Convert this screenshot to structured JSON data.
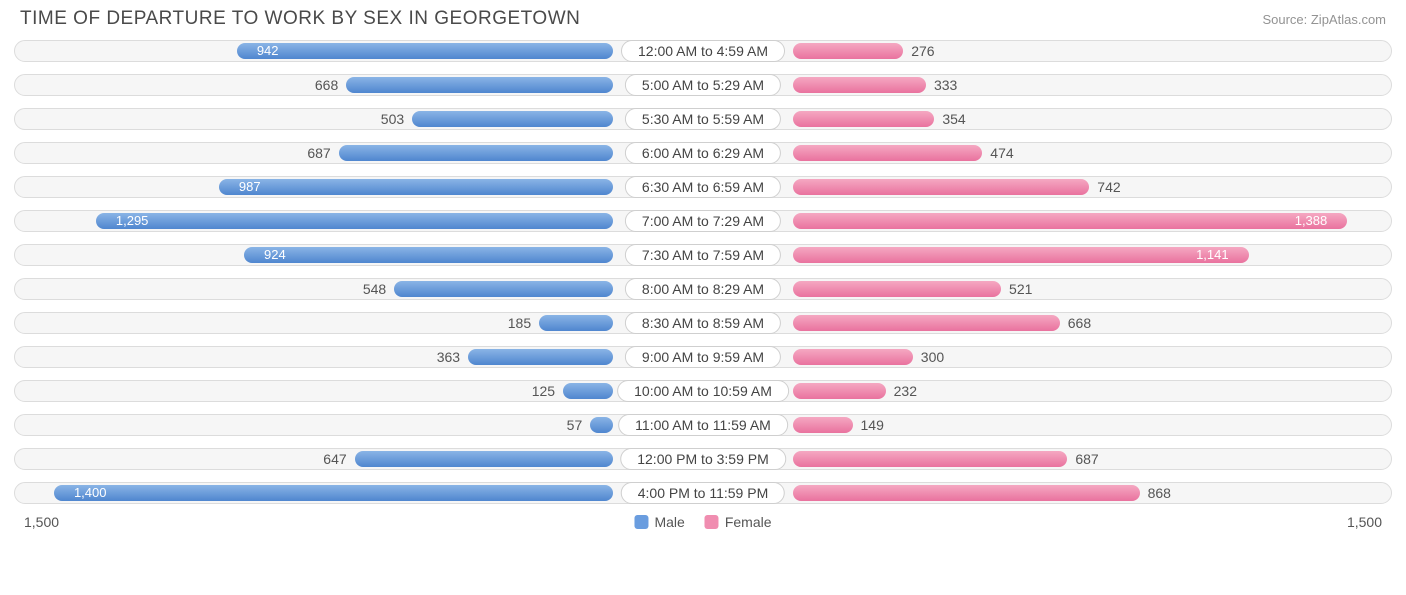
{
  "title": "TIME OF DEPARTURE TO WORK BY SEX IN GEORGETOWN",
  "source": "Source: ZipAtlas.com",
  "chart": {
    "type": "diverging-bar",
    "axis_max": 1500,
    "axis_label_left": "1,500",
    "axis_label_right": "1,500",
    "center_label_bg": "#ffffff",
    "center_label_border": "#cfcfcf",
    "track_bg": "#f6f6f6",
    "track_border": "#dcdcdc",
    "text_color": "#555555",
    "value_inside_color": "#ffffff",
    "male": {
      "label": "Male",
      "color": "#6a9ddf",
      "gradient_light": "#8ab4e6",
      "gradient_dark": "#4f86cf"
    },
    "female": {
      "label": "Female",
      "color": "#f08db0",
      "gradient_light": "#f5a8c2",
      "gradient_dark": "#e9729e"
    },
    "rows": [
      {
        "label": "12:00 AM to 4:59 AM",
        "male": 942,
        "male_text": "942",
        "female": 276,
        "female_text": "276"
      },
      {
        "label": "5:00 AM to 5:29 AM",
        "male": 668,
        "male_text": "668",
        "female": 333,
        "female_text": "333"
      },
      {
        "label": "5:30 AM to 5:59 AM",
        "male": 503,
        "male_text": "503",
        "female": 354,
        "female_text": "354"
      },
      {
        "label": "6:00 AM to 6:29 AM",
        "male": 687,
        "male_text": "687",
        "female": 474,
        "female_text": "474"
      },
      {
        "label": "6:30 AM to 6:59 AM",
        "male": 987,
        "male_text": "987",
        "female": 742,
        "female_text": "742"
      },
      {
        "label": "7:00 AM to 7:29 AM",
        "male": 1295,
        "male_text": "1,295",
        "female": 1388,
        "female_text": "1,388"
      },
      {
        "label": "7:30 AM to 7:59 AM",
        "male": 924,
        "male_text": "924",
        "female": 1141,
        "female_text": "1,141"
      },
      {
        "label": "8:00 AM to 8:29 AM",
        "male": 548,
        "male_text": "548",
        "female": 521,
        "female_text": "521"
      },
      {
        "label": "8:30 AM to 8:59 AM",
        "male": 185,
        "male_text": "185",
        "female": 668,
        "female_text": "668"
      },
      {
        "label": "9:00 AM to 9:59 AM",
        "male": 363,
        "male_text": "363",
        "female": 300,
        "female_text": "300"
      },
      {
        "label": "10:00 AM to 10:59 AM",
        "male": 125,
        "male_text": "125",
        "female": 232,
        "female_text": "232"
      },
      {
        "label": "11:00 AM to 11:59 AM",
        "male": 57,
        "male_text": "57",
        "female": 149,
        "female_text": "149"
      },
      {
        "label": "12:00 PM to 3:59 PM",
        "male": 647,
        "male_text": "647",
        "female": 687,
        "female_text": "687"
      },
      {
        "label": "4:00 PM to 11:59 PM",
        "male": 1400,
        "male_text": "1,400",
        "female": 868,
        "female_text": "868"
      }
    ]
  }
}
